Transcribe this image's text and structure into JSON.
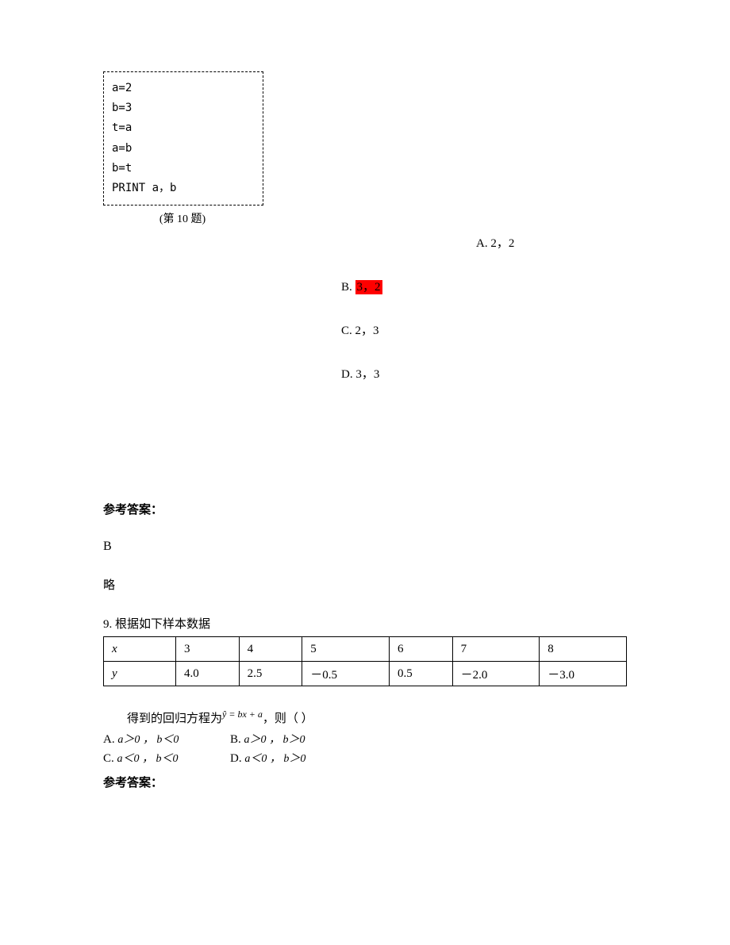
{
  "codebox": {
    "lines": [
      "a=2",
      "b=3",
      "t=a",
      "a=b",
      "b=t",
      "PRINT a，b"
    ],
    "caption": "(第 10 题)"
  },
  "q10_options": {
    "a": "A. 2，2",
    "b_prefix": "B. ",
    "b_highlighted": "3，2",
    "c": "C. 2，3",
    "d": "D. 3，3"
  },
  "answer_section": {
    "heading": "参考答案：",
    "value": "B",
    "note": "略"
  },
  "q9": {
    "stem": "9. 根据如下样本数据",
    "table": {
      "row1_label": "x",
      "row2_label": "y",
      "r1": [
        "3",
        "4",
        "5",
        "6",
        "7",
        "8"
      ],
      "r2": [
        "4.0",
        "2.5",
        "－0.5",
        "0.5",
        "－2.0",
        "－3.0"
      ]
    },
    "eq_line_prefix": "得到的回归方程为",
    "eq_expr": "ŷ = bx + a",
    "eq_line_suffix": "，则（   ）",
    "options": {
      "A": {
        "label": "A.",
        "expr": "a＞0 ， b＜0"
      },
      "B": {
        "label": "B.",
        "expr": "a＞0 ， b＞0"
      },
      "C": {
        "label": "C.",
        "expr": "a＜0 ， b＜0"
      },
      "D": {
        "label": "D.",
        "expr": "a＜0 ， b＞0"
      }
    },
    "answer_heading": "参考答案："
  },
  "colors": {
    "highlight_bg": "#ff0000",
    "page_bg": "#ffffff",
    "text": "#000000"
  }
}
